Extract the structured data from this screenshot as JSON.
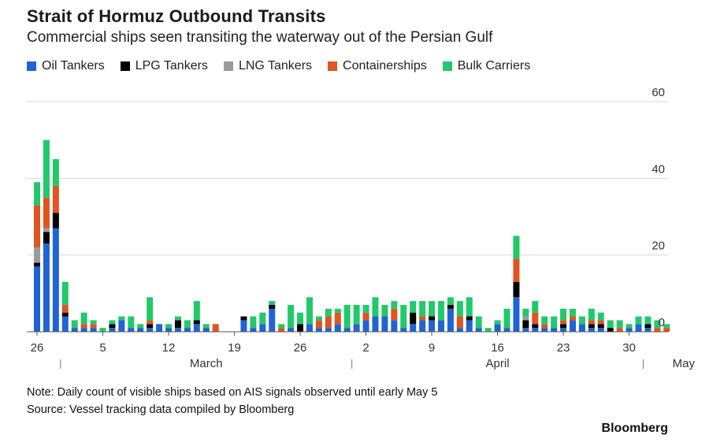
{
  "header": {
    "title": "Strait of Hormuz Outbound Transits",
    "subtitle": "Commercial ships seen transiting the waterway out of the Persian Gulf"
  },
  "legend": [
    {
      "label": "Oil Tankers",
      "color": "#1f64d4"
    },
    {
      "label": "LPG Tankers",
      "color": "#000000"
    },
    {
      "label": "LNG Tankers",
      "color": "#9b9b9b"
    },
    {
      "label": "Containerships",
      "color": "#e0541e"
    },
    {
      "label": "Bulk Carriers",
      "color": "#22c96a"
    }
  ],
  "footer": {
    "note": "Note: Daily count of visible ships based on AIS signals observed until early May 5",
    "source": "Source: Vessel tracking data compiled by Bloomberg",
    "brand": "Bloomberg"
  },
  "chart_data": {
    "type": "bar",
    "stacked": true,
    "ylim": [
      0,
      60
    ],
    "yticks": [
      0,
      20,
      40,
      60
    ],
    "grid": true,
    "legend_position": "top-left",
    "x_tick_labels": [
      "26",
      "5",
      "12",
      "19",
      "26",
      "2",
      "9",
      "16",
      "23",
      "30"
    ],
    "month_labels": [
      "March",
      "April",
      "May"
    ],
    "categories": [
      "Feb 26",
      "Feb 27",
      "Feb 28",
      "Mar 1",
      "Mar 2",
      "Mar 3",
      "Mar 4",
      "Mar 5",
      "Mar 6",
      "Mar 7",
      "Mar 8",
      "Mar 9",
      "Mar 10",
      "Mar 11",
      "Mar 12",
      "Mar 13",
      "Mar 14",
      "Mar 15",
      "Mar 16",
      "Mar 17",
      "Mar 18",
      "Mar 19",
      "Mar 20",
      "Mar 21",
      "Mar 22",
      "Mar 23",
      "Mar 24",
      "Mar 25",
      "Mar 26",
      "Mar 27",
      "Mar 28",
      "Mar 29",
      "Mar 30",
      "Mar 31",
      "Apr 1",
      "Apr 2",
      "Apr 3",
      "Apr 4",
      "Apr 5",
      "Apr 6",
      "Apr 7",
      "Apr 8",
      "Apr 9",
      "Apr 10",
      "Apr 11",
      "Apr 12",
      "Apr 13",
      "Apr 14",
      "Apr 15",
      "Apr 16",
      "Apr 17",
      "Apr 18",
      "Apr 19",
      "Apr 20",
      "Apr 21",
      "Apr 22",
      "Apr 23",
      "Apr 24",
      "Apr 25",
      "Apr 26",
      "Apr 27",
      "Apr 28",
      "Apr 29",
      "Apr 30",
      "May 1",
      "May 2",
      "May 3",
      "May 4"
    ],
    "series": [
      {
        "name": "Oil Tankers",
        "color": "#1f64d4",
        "values": [
          17,
          23,
          27,
          4,
          1,
          1,
          1,
          0,
          1,
          3,
          1,
          1,
          1,
          2,
          1,
          1,
          1,
          2,
          1,
          0,
          0,
          0,
          3,
          1,
          2,
          6,
          0,
          1,
          0,
          2,
          1,
          1,
          2,
          1,
          2,
          3,
          4,
          4,
          3,
          1,
          2,
          3,
          3,
          3,
          6,
          1,
          3,
          1,
          0,
          2,
          1,
          9,
          1,
          1,
          1,
          1,
          1,
          3,
          2,
          1,
          1,
          0,
          0,
          1,
          2,
          1,
          0,
          0
        ]
      },
      {
        "name": "LPG Tankers",
        "color": "#000000",
        "values": [
          1,
          3,
          4,
          1,
          0,
          0,
          0,
          0,
          1,
          0,
          0,
          0,
          1,
          0,
          0,
          2,
          0,
          1,
          0,
          0,
          0,
          0,
          1,
          0,
          0,
          1,
          0,
          0,
          2,
          0,
          0,
          0,
          0,
          0,
          0,
          0,
          0,
          0,
          0,
          0,
          3,
          0,
          1,
          0,
          1,
          0,
          1,
          0,
          0,
          0,
          0,
          4,
          2,
          1,
          0,
          0,
          1,
          0,
          0,
          1,
          1,
          1,
          0,
          0,
          0,
          1,
          0,
          0
        ]
      },
      {
        "name": "LNG Tankers",
        "color": "#9b9b9b",
        "values": [
          4,
          1,
          0,
          0,
          0,
          0,
          0,
          0,
          0,
          0,
          0,
          0,
          0,
          0,
          0,
          0,
          0,
          0,
          0,
          0,
          0,
          0,
          0,
          0,
          0,
          0,
          0,
          0,
          0,
          0,
          0,
          0,
          0,
          0,
          0,
          0,
          0,
          0,
          0,
          0,
          0,
          0,
          0,
          0,
          0,
          0,
          0,
          0,
          0,
          0,
          0,
          0,
          1,
          0,
          0,
          0,
          0,
          0,
          0,
          0,
          0,
          0,
          0,
          0,
          0,
          0,
          0,
          0
        ]
      },
      {
        "name": "Containerships",
        "color": "#e0541e",
        "values": [
          11,
          8,
          7,
          2,
          0,
          1,
          1,
          0,
          0,
          0,
          0,
          0,
          1,
          0,
          0,
          0,
          0,
          0,
          0,
          2,
          0,
          0,
          0,
          0,
          0,
          0,
          1,
          0,
          0,
          0,
          2,
          3,
          3,
          0,
          0,
          2,
          0,
          0,
          3,
          0,
          0,
          1,
          0,
          0,
          0,
          3,
          0,
          0,
          0,
          0,
          0,
          6,
          0,
          3,
          1,
          0,
          1,
          1,
          0,
          1,
          1,
          0,
          1,
          0,
          0,
          0,
          1,
          1
        ]
      },
      {
        "name": "Bulk Carriers",
        "color": "#22c96a",
        "values": [
          6,
          15,
          7,
          6,
          2,
          3,
          1,
          1,
          1,
          1,
          3,
          1,
          6,
          0,
          1,
          1,
          2,
          5,
          1,
          0,
          0,
          0,
          0,
          3,
          3,
          1,
          1,
          6,
          3,
          7,
          1,
          2,
          1,
          6,
          5,
          2,
          5,
          3,
          2,
          6,
          3,
          4,
          4,
          5,
          2,
          4,
          5,
          3,
          1,
          1,
          5,
          6,
          2,
          3,
          2,
          3,
          3,
          2,
          2,
          3,
          2,
          2,
          2,
          1,
          2,
          2,
          2,
          1
        ]
      }
    ]
  }
}
